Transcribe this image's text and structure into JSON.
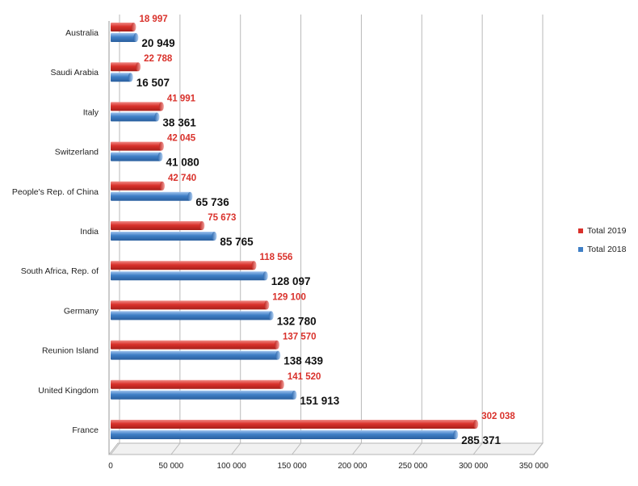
{
  "chart_data": {
    "type": "bar",
    "orientation": "horizontal",
    "categories": [
      "Australia",
      "Saudi Arabia",
      "Italy",
      "Switzerland",
      "People's Rep. of China",
      "India",
      "South Africa, Rep. of",
      "Germany",
      "Reunion Island",
      "United Kingdom",
      "France"
    ],
    "series": [
      {
        "name": "Total 2019",
        "color": "#d9312b",
        "values": [
          18997,
          22788,
          41991,
          42045,
          42740,
          75673,
          118556,
          129100,
          137570,
          141520,
          302038
        ],
        "labels": [
          "18 997",
          "22 788",
          "41 991",
          "42 045",
          "42 740",
          "75 673",
          "118 556",
          "129 100",
          "137 570",
          "141 520",
          "302 038"
        ]
      },
      {
        "name": "Total 2018",
        "color": "#3f7fc6",
        "values": [
          20949,
          16507,
          38361,
          41080,
          65736,
          85765,
          128097,
          132780,
          138439,
          151913,
          285371
        ],
        "labels": [
          "20 949",
          "16 507",
          "38 361",
          "41 080",
          "65 736",
          "85 765",
          "128 097",
          "132 780",
          "138 439",
          "151 913",
          "285 371"
        ]
      }
    ],
    "xlim": [
      0,
      350000
    ],
    "xticks": [
      0,
      50000,
      100000,
      150000,
      200000,
      250000,
      300000,
      350000
    ],
    "xtick_labels": [
      "0",
      "50 000",
      "100 000",
      "150 000",
      "200 000",
      "250 000",
      "300 000",
      "350 000"
    ],
    "grid": true,
    "legend_position": "right",
    "title": "",
    "xlabel": "",
    "ylabel": ""
  }
}
